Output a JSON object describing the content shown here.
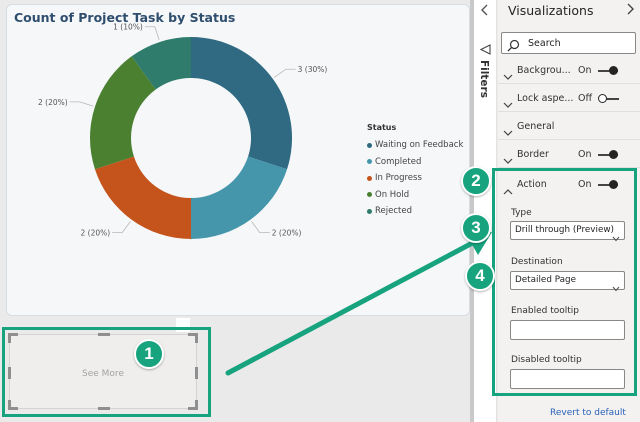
{
  "chart": {
    "title": "Count of Project Task by Status"
  },
  "chart_data": {
    "type": "pie",
    "title": "Count of Project Task by Status",
    "legend_title": "Status",
    "legend_position": "right",
    "donut": true,
    "slices": [
      {
        "name": "Waiting on Feedback",
        "value": 3,
        "percent": 30,
        "label": "3 (30%)",
        "color": "#2f6a82"
      },
      {
        "name": "Completed",
        "value": 2,
        "percent": 20,
        "label": "2 (20%)",
        "color": "#4596ab"
      },
      {
        "name": "In Progress",
        "value": 2,
        "percent": 20,
        "label": "2 (20%)",
        "color": "#c5541c"
      },
      {
        "name": "On Hold",
        "value": 2,
        "percent": 20,
        "label": "2 (20%)",
        "color": "#4a8030"
      },
      {
        "name": "Rejected",
        "value": 1,
        "percent": 10,
        "label": "1 (10%)",
        "color": "#2f7c6c"
      }
    ]
  },
  "button_visual": {
    "label": "See More"
  },
  "filters_rail": {
    "label": "Filters"
  },
  "viz_pane": {
    "title": "Visualizations",
    "search_placeholder": "Search",
    "sections": {
      "background": {
        "label": "Backgrou...",
        "state": "On"
      },
      "lock_aspect": {
        "label": "Lock aspe...",
        "state": "Off"
      },
      "general": {
        "label": "General"
      },
      "border": {
        "label": "Border",
        "state": "On"
      },
      "action": {
        "label": "Action",
        "state": "On"
      }
    },
    "action_fields": {
      "type_label": "Type",
      "type_value": "Drill through (Preview)",
      "destination_label": "Destination",
      "destination_value": "Detailed Page",
      "enabled_tooltip_label": "Enabled tooltip",
      "enabled_tooltip_value": "",
      "disabled_tooltip_label": "Disabled tooltip",
      "disabled_tooltip_value": ""
    },
    "revert_label": "Revert to default"
  },
  "callouts": [
    "1",
    "2",
    "3",
    "4"
  ],
  "colors": {
    "accent_green": "#16a37e",
    "chart_title": "#2f4e6e",
    "link_blue": "#2b61b8"
  },
  "icons": {
    "rail_chevron": "chevron-left-icon",
    "filters": "filter-funnel-icon",
    "search": "search-icon",
    "more": "chevron-right-icon"
  }
}
